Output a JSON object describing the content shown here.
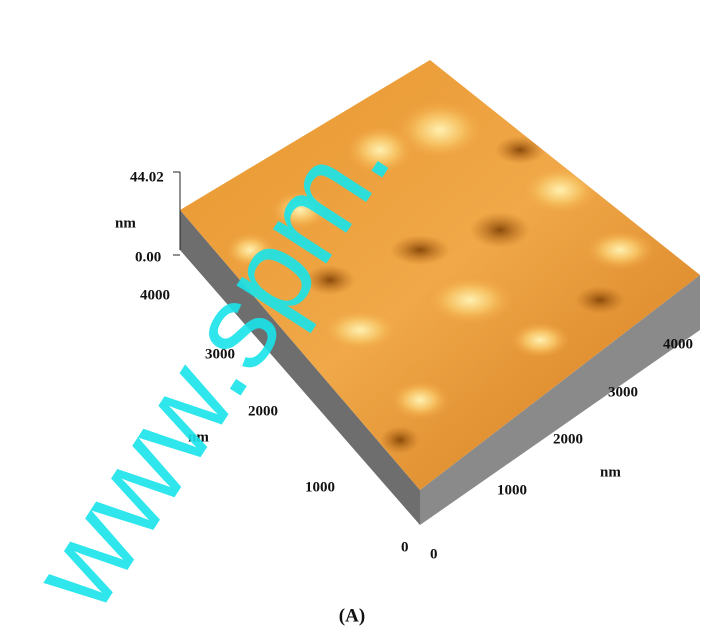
{
  "figure": {
    "z_axis": {
      "max": "44.02",
      "unit": "nm",
      "min": "0.00"
    },
    "left_axis": {
      "ticks": [
        "4000",
        "3000",
        "2000",
        "1000",
        "0"
      ],
      "unit": "nm"
    },
    "right_axis": {
      "ticks": [
        "4000",
        "3000",
        "2000",
        "1000",
        "0"
      ],
      "unit": "nm"
    },
    "caption": "(A)",
    "watermark": "www.spm."
  }
}
